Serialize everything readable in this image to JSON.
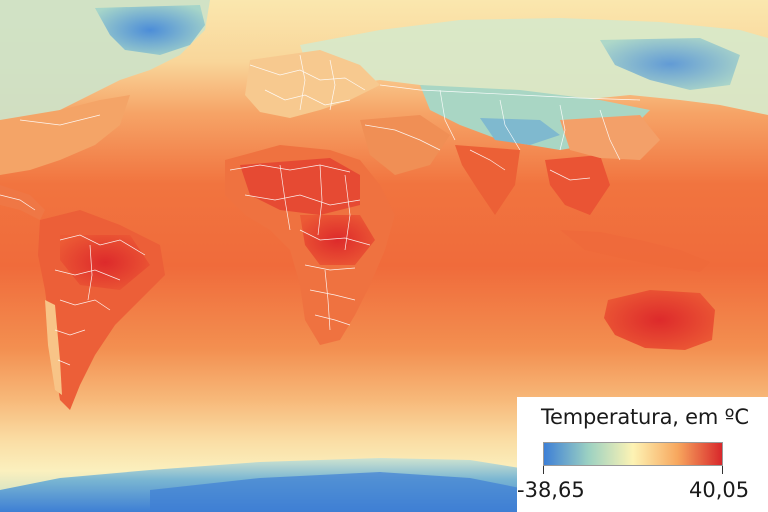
{
  "legend": {
    "title": "Temperatura, em ºC",
    "min_label": "-38,65",
    "max_label": "40,05",
    "colors": [
      "#3d7fd6",
      "#9cd1c2",
      "#fdf3b4",
      "#f7a75e",
      "#d8272b"
    ]
  },
  "map": {
    "ocean_warm": "#f26b3c",
    "ocean_mid": "#f6a467",
    "ocean_cool": "#f9dda3",
    "land_hot": "#e1322f",
    "land_cool": "#a7d7c6",
    "land_cold": "#4d8ed8",
    "border_color": "#ffffff"
  }
}
